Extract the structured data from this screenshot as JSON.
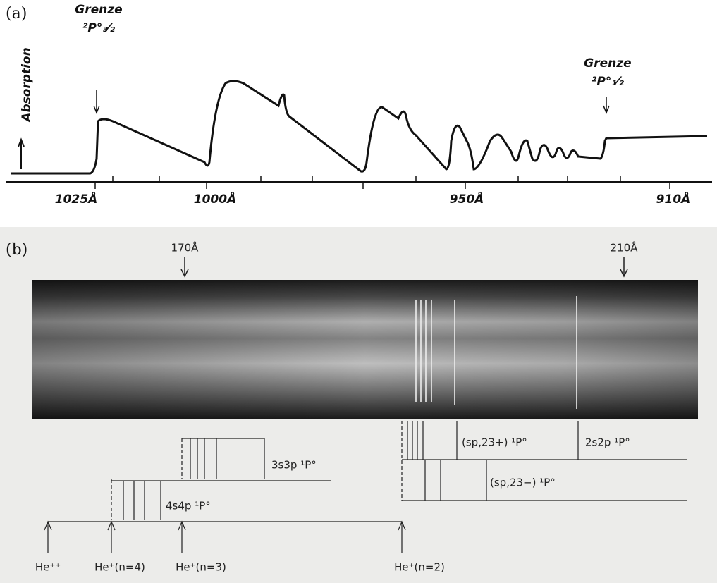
{
  "panel_a": {
    "label": "(a)",
    "absorption": "Absorption",
    "left_limit": {
      "name": "Grenze",
      "term": "²P°₃⁄₂"
    },
    "right_limit": {
      "name": "Grenze",
      "term": "²P°₁⁄₂"
    },
    "axis_labels": [
      "1025Å",
      "1000Å",
      "950Å",
      "910Å"
    ]
  },
  "panel_b": {
    "label": "(b)",
    "markers": [
      "170Å",
      "210Å"
    ],
    "series": [
      "3s3p ¹P°",
      "4s4p ¹P°",
      "(sp,23+) ¹P°",
      "2s2p ¹P°",
      "(sp,23−) ¹P°"
    ],
    "thresholds": [
      "He⁺⁺",
      "He⁺(n=4)",
      "He⁺(n=3)",
      "He⁺(n=2)"
    ]
  }
}
